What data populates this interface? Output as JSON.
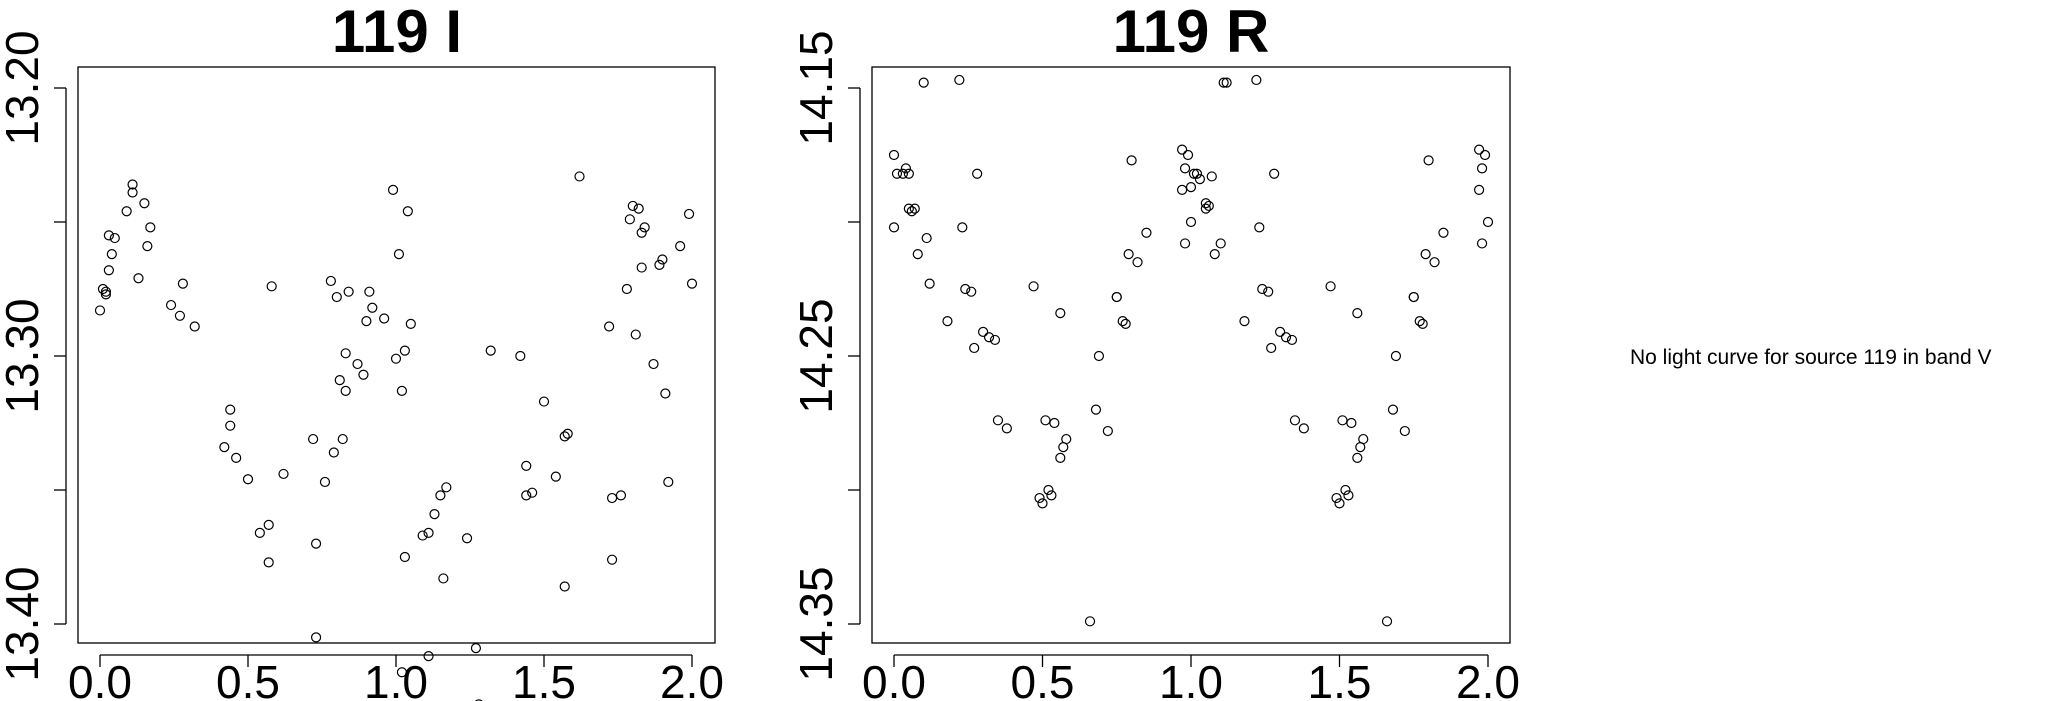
{
  "chart_data": [
    {
      "type": "scatter",
      "title": "119 I",
      "xlabel": "",
      "ylabel": "",
      "xlim": [
        0.0,
        2.0
      ],
      "ylim": [
        13.2,
        13.4
      ],
      "y_reversed": true,
      "x_ticks": [
        "0.0",
        "0.5",
        "1.0",
        "1.5",
        "2.0"
      ],
      "y_ticks": [
        "13.20",
        "13.30",
        "13.40"
      ],
      "y_tick_values": [
        13.2,
        13.25,
        13.3,
        13.35,
        13.4
      ],
      "x_tick_values": [
        0.0,
        0.5,
        1.0,
        1.5,
        2.0
      ],
      "grid": false,
      "series": [
        {
          "x": [
            0.0,
            0.01,
            0.02,
            0.02,
            0.03,
            0.03,
            0.04,
            0.05,
            0.09,
            0.11,
            0.11,
            0.13,
            0.15,
            0.16,
            0.17,
            0.24,
            0.27,
            0.28,
            0.32,
            0.42,
            0.44,
            0.44,
            0.46,
            0.5,
            0.54,
            0.57,
            0.57,
            0.58,
            0.62,
            0.72,
            0.73,
            0.73,
            0.76,
            0.78,
            0.79,
            0.8,
            0.81,
            0.82,
            0.83,
            0.83,
            0.84,
            0.87,
            0.89,
            0.9,
            0.91,
            0.92,
            0.96,
            0.99,
            1.0,
            1.01,
            1.02,
            1.02,
            1.03,
            1.03,
            1.04,
            1.05,
            1.09,
            1.11,
            1.11,
            1.13,
            1.15,
            1.16,
            1.17,
            1.24,
            1.27,
            1.28,
            1.32,
            1.42,
            1.44,
            1.44,
            1.46,
            1.5,
            1.54,
            1.57,
            1.57,
            1.58,
            1.62,
            1.72,
            1.73,
            1.73,
            1.76,
            1.78,
            1.79,
            1.8,
            1.81,
            1.82,
            1.83,
            1.83,
            1.84,
            1.87,
            1.89,
            1.9,
            1.91,
            1.92,
            1.96,
            1.99,
            2.0
          ],
          "y": [
            13.283,
            13.275,
            13.276,
            13.277,
            13.255,
            13.268,
            13.262,
            13.256,
            13.246,
            13.239,
            13.236,
            13.271,
            13.243,
            13.259,
            13.252,
            13.281,
            13.285,
            13.273,
            13.289,
            13.334,
            13.32,
            13.326,
            13.338,
            13.346,
            13.366,
            13.377,
            13.363,
            13.274,
            13.344,
            13.331,
            13.405,
            13.37,
            13.347,
            13.272,
            13.336,
            13.278,
            13.309,
            13.331,
            13.299,
            13.313,
            13.276,
            13.303,
            13.307,
            13.287,
            13.276,
            13.282,
            13.286,
            13.238,
            13.301,
            13.262,
            13.313,
            13.418,
            13.375,
            13.298,
            13.246,
            13.288,
            13.367,
            13.412,
            13.366,
            13.359,
            13.352,
            13.383,
            13.349,
            13.368,
            13.409,
            13.43,
            13.298,
            13.3,
            13.352,
            13.341,
            13.351,
            13.317,
            13.345,
            13.386,
            13.33,
            13.329,
            13.233,
            13.289,
            13.353,
            13.376,
            13.352,
            13.275,
            13.249,
            13.244,
            13.292,
            13.245,
            13.254,
            13.267,
            13.252,
            13.303,
            13.266,
            13.264,
            13.314,
            13.347,
            13.259,
            13.247,
            13.273
          ]
        }
      ]
    },
    {
      "type": "scatter",
      "title": "119 R",
      "xlabel": "",
      "ylabel": "",
      "xlim": [
        0.0,
        2.0
      ],
      "ylim": [
        14.15,
        14.35
      ],
      "y_reversed": true,
      "x_ticks": [
        "0.0",
        "0.5",
        "1.0",
        "1.5",
        "2.0"
      ],
      "y_ticks": [
        "14.15",
        "14.25",
        "14.35"
      ],
      "y_tick_values": [
        14.15,
        14.2,
        14.25,
        14.3,
        14.35
      ],
      "x_tick_values": [
        0.0,
        0.5,
        1.0,
        1.5,
        2.0
      ],
      "grid": false,
      "series": [
        {
          "x": [
            0.0,
            0.0,
            0.01,
            0.03,
            0.04,
            0.05,
            0.05,
            0.06,
            0.07,
            0.08,
            0.1,
            0.11,
            0.12,
            0.18,
            0.22,
            0.23,
            0.24,
            0.26,
            0.27,
            0.28,
            0.3,
            0.32,
            0.34,
            0.35,
            0.38,
            0.47,
            0.49,
            0.5,
            0.51,
            0.52,
            0.53,
            0.54,
            0.56,
            0.56,
            0.57,
            0.58,
            0.66,
            0.68,
            0.69,
            0.72,
            0.75,
            0.75,
            0.77,
            0.78,
            0.79,
            0.8,
            0.82,
            0.85,
            0.97,
            0.97,
            0.98,
            0.98,
            0.99,
            1.0,
            1.0,
            1.01,
            1.02,
            1.03,
            1.05,
            1.05,
            1.06,
            1.07,
            1.08,
            1.1,
            1.11,
            1.12,
            1.18,
            1.22,
            1.23,
            1.24,
            1.26,
            1.27,
            1.28,
            1.3,
            1.32,
            1.34,
            1.35,
            1.38,
            1.47,
            1.49,
            1.5,
            1.51,
            1.52,
            1.53,
            1.54,
            1.56,
            1.56,
            1.57,
            1.58,
            1.66,
            1.68,
            1.69,
            1.72,
            1.75,
            1.75,
            1.77,
            1.78,
            1.79,
            1.8,
            1.82,
            1.85,
            1.97,
            1.97,
            1.98,
            1.98,
            1.99,
            2.0
          ],
          "y": [
            14.175,
            14.202,
            14.182,
            14.182,
            14.18,
            14.195,
            14.182,
            14.196,
            14.195,
            14.212,
            14.148,
            14.206,
            14.223,
            14.237,
            14.147,
            14.202,
            14.225,
            14.226,
            14.247,
            14.182,
            14.241,
            14.243,
            14.244,
            14.274,
            14.277,
            14.224,
            14.303,
            14.305,
            14.274,
            14.3,
            14.302,
            14.275,
            14.234,
            14.288,
            14.284,
            14.281,
            14.349,
            14.27,
            14.25,
            14.278,
            14.228,
            14.228,
            14.237,
            14.238,
            14.212,
            14.177,
            14.215,
            14.204,
            14.173,
            14.188,
            14.208,
            14.18,
            14.175,
            14.2,
            14.187,
            14.182,
            14.182,
            14.184,
            14.193,
            14.195,
            14.194,
            14.183,
            14.212,
            14.208,
            14.148,
            14.148,
            14.237,
            14.147,
            14.202,
            14.225,
            14.226,
            14.247,
            14.182,
            14.241,
            14.243,
            14.244,
            14.274,
            14.277,
            14.224,
            14.303,
            14.305,
            14.274,
            14.3,
            14.302,
            14.275,
            14.234,
            14.288,
            14.284,
            14.281,
            14.349,
            14.27,
            14.25,
            14.278,
            14.228,
            14.228,
            14.237,
            14.238,
            14.212,
            14.177,
            14.215,
            14.204,
            14.173,
            14.188,
            14.208,
            14.18,
            14.175,
            14.2
          ]
        }
      ]
    }
  ],
  "notice": {
    "text": "No light curve for source 119 in band V"
  }
}
